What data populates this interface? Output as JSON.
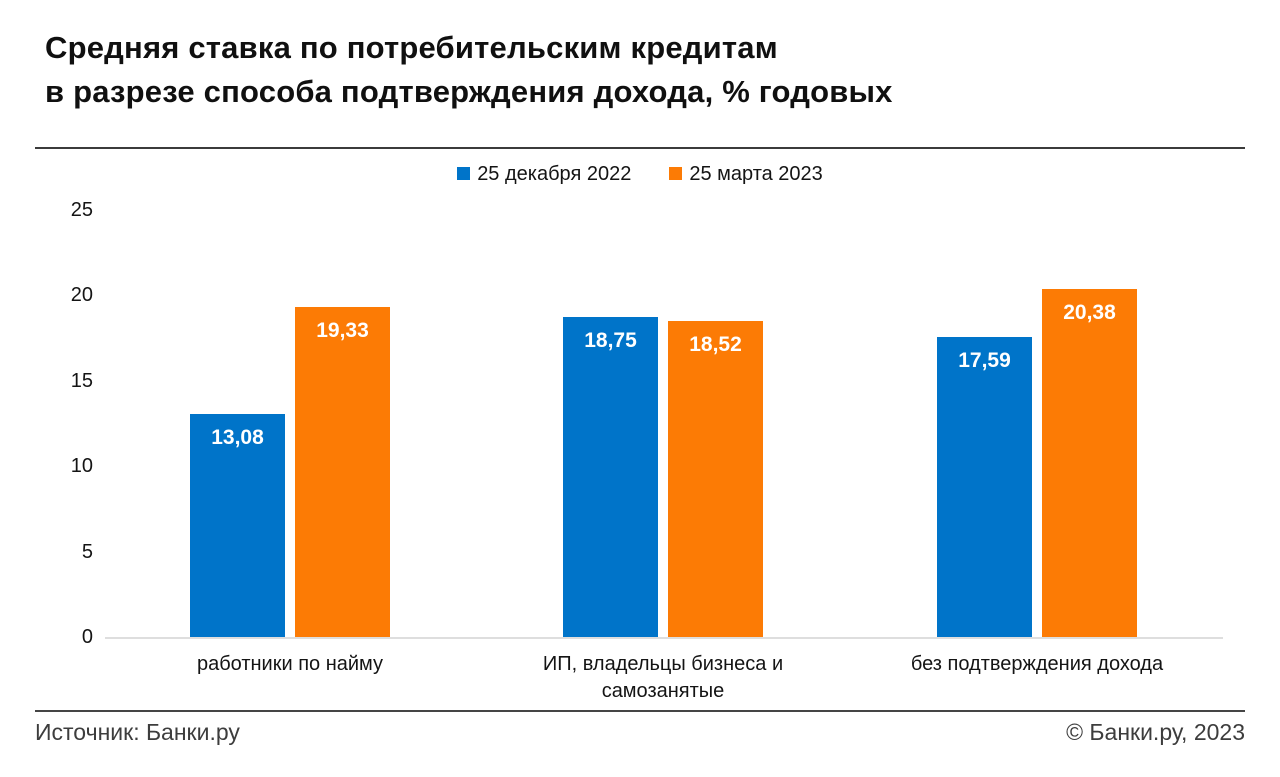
{
  "header": {
    "title_line1": "Средняя ставка по потребительским кредитам",
    "title_line2": "в разрезе способа подтверждения дохода, % годовых"
  },
  "legend": [
    {
      "label": "25 декабря 2022",
      "color": "#0074C9"
    },
    {
      "label": "25 марта 2023",
      "color": "#FC7B05"
    }
  ],
  "chart_data": {
    "type": "bar",
    "title": "Средняя ставка по потребительским кредитам в разрезе способа подтверждения дохода, % годовых",
    "categories": [
      "работники по найму",
      "ИП, владельцы бизнеса и самозанятые",
      "без подтверждения дохода"
    ],
    "series": [
      {
        "name": "25 декабря 2022",
        "color": "#0074C9",
        "values": [
          13.08,
          18.75,
          17.59
        ]
      },
      {
        "name": "25 марта 2023",
        "color": "#FC7B05",
        "values": [
          19.33,
          18.52,
          20.38
        ]
      }
    ],
    "value_labels": [
      [
        "13,08",
        "18,75",
        "17,59"
      ],
      [
        "19,33",
        "18,52",
        "20,38"
      ]
    ],
    "xlabel": "",
    "ylabel": "",
    "ylim": [
      0,
      25
    ],
    "yticks": [
      0,
      5,
      10,
      15,
      20,
      25
    ],
    "grid": false,
    "legend_position": "top-center",
    "value_label_format": "comma-decimal"
  },
  "footer": {
    "source": "Источник: Банки.ру",
    "copyright": "© Банки.ру, 2023"
  }
}
